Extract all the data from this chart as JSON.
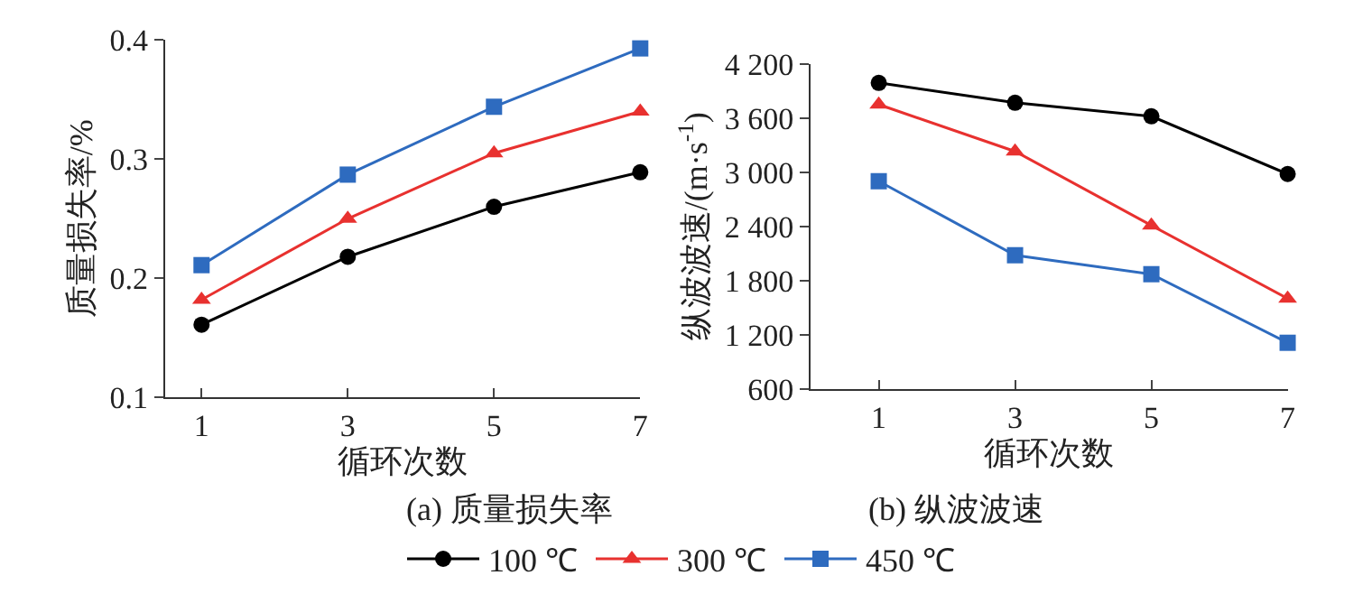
{
  "chart_data": [
    {
      "type": "line",
      "title": "(a) 质量损失率",
      "xlabel": "循环次数",
      "ylabel": "质量损失率/%",
      "x": [
        1,
        3,
        5,
        7
      ],
      "xlim": [
        0.5,
        7
      ],
      "xticks": [
        1,
        3,
        5,
        7
      ],
      "ylim": [
        0.1,
        0.4
      ],
      "yticks": [
        0.1,
        0.2,
        0.3,
        0.4
      ],
      "legend": "bottom",
      "series": [
        {
          "name": "100 ℃",
          "color": "#000000",
          "marker": "circle",
          "values": [
            0.161,
            0.218,
            0.26,
            0.289
          ]
        },
        {
          "name": "300 ℃",
          "color": "#e8312f",
          "marker": "triangle",
          "values": [
            0.182,
            0.25,
            0.305,
            0.34
          ]
        },
        {
          "name": "450 ℃",
          "color": "#2e6bbf",
          "marker": "square",
          "values": [
            0.211,
            0.287,
            0.344,
            0.393
          ]
        }
      ]
    },
    {
      "type": "line",
      "title": "(b) 纵波波速",
      "xlabel": "循环次数",
      "ylabel": "纵波波速/(m·s$^{-1}$)",
      "x": [
        1,
        3,
        5,
        7
      ],
      "xlim": [
        0,
        7
      ],
      "xticks": [
        1,
        3,
        5,
        7
      ],
      "ylim": [
        600,
        4200
      ],
      "yticks": [
        {
          "value": 600,
          "label": "600"
        },
        {
          "value": 1200,
          "label": "1 200"
        },
        {
          "value": 1800,
          "label": "1 800"
        },
        {
          "value": 2400,
          "label": "2 400"
        },
        {
          "value": 3000,
          "label": "3 000"
        },
        {
          "value": 3600,
          "label": "3 600"
        },
        {
          "value": 4200,
          "label": "4 200"
        }
      ],
      "series": [
        {
          "color": "#000000",
          "marker": "circle",
          "values": [
            3990,
            3770,
            3620,
            2980
          ]
        },
        {
          "color": "#e8312f",
          "marker": "triangle",
          "values": [
            3750,
            3230,
            2410,
            1600
          ]
        },
        {
          "color": "#2e6bbf",
          "marker": "square",
          "values": [
            2900,
            2080,
            1870,
            1110
          ]
        }
      ]
    }
  ]
}
